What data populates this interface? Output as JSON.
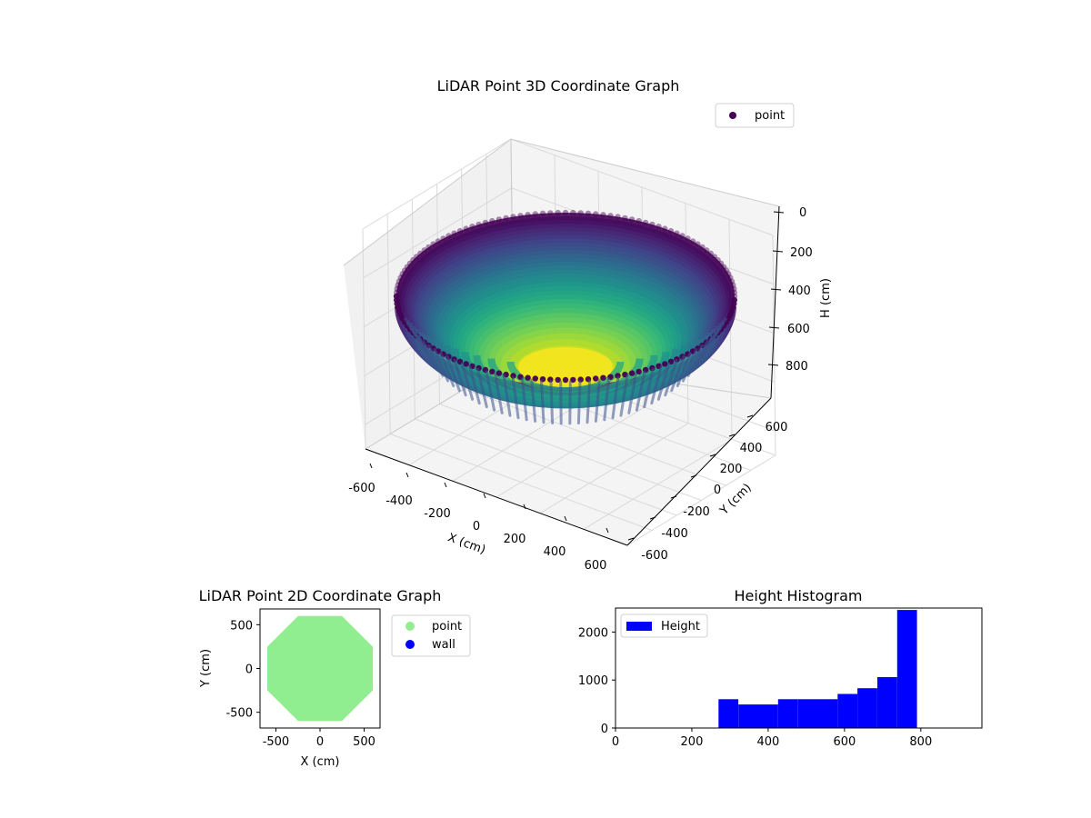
{
  "chart_data": [
    {
      "id": "chart3d",
      "type": "scatter",
      "title": "LiDAR Point 3D Coordinate Graph",
      "xlabel": "X (cm)",
      "ylabel": "Y (cm)",
      "zlabel": "H (cm)",
      "xlim": [
        -600,
        600
      ],
      "ylim": [
        -600,
        600
      ],
      "zlim": [
        0,
        900
      ],
      "z_inverted": true,
      "x_ticks": [
        "-600",
        "-400",
        "-200",
        "0",
        "200",
        "400",
        "600"
      ],
      "y_ticks": [
        "-600",
        "-400",
        "-200",
        "0",
        "200",
        "400",
        "600"
      ],
      "z_ticks": [
        "0",
        "200",
        "400",
        "600",
        "800"
      ],
      "series": [
        {
          "name": "point",
          "color": "#440154"
        }
      ],
      "surface": {
        "shape": "bowl",
        "radius": 600,
        "rim_height": 0,
        "bottom_height": 900,
        "colormap": "viridis"
      },
      "legend": "top-right",
      "grid": true
    },
    {
      "id": "chart2d",
      "type": "scatter",
      "title": "LiDAR Point 2D Coordinate Graph",
      "xlabel": "X (cm)",
      "ylabel": "Y (cm)",
      "xlim": [
        -680,
        680
      ],
      "ylim": [
        -680,
        680
      ],
      "x_ticks": [
        -500,
        0,
        500
      ],
      "y_ticks": [
        -500,
        0,
        500
      ],
      "series": [
        {
          "name": "point",
          "color": "#90ee90",
          "radius": 600
        },
        {
          "name": "wall",
          "color": "#0000ff"
        }
      ],
      "legend": "outside-right",
      "grid": false
    },
    {
      "id": "histogram",
      "type": "bar",
      "title": "Height Histogram",
      "xlim": [
        0,
        960
      ],
      "ylim": [
        0,
        2500
      ],
      "x_ticks": [
        0,
        200,
        400,
        600,
        800
      ],
      "y_ticks": [
        0,
        1000,
        2000
      ],
      "bins": [
        {
          "x0": 270,
          "x1": 322,
          "value": 600
        },
        {
          "x0": 322,
          "x1": 374,
          "value": 490
        },
        {
          "x0": 374,
          "x1": 426,
          "value": 490
        },
        {
          "x0": 426,
          "x1": 478,
          "value": 600
        },
        {
          "x0": 478,
          "x1": 530,
          "value": 600
        },
        {
          "x0": 530,
          "x1": 582,
          "value": 600
        },
        {
          "x0": 582,
          "x1": 634,
          "value": 710
        },
        {
          "x0": 634,
          "x1": 686,
          "value": 830
        },
        {
          "x0": 686,
          "x1": 738,
          "value": 1060
        },
        {
          "x0": 738,
          "x1": 790,
          "value": 2460
        }
      ],
      "series": [
        {
          "name": "Height",
          "color": "#0000ff"
        }
      ],
      "legend": "top-left",
      "grid": false
    }
  ]
}
